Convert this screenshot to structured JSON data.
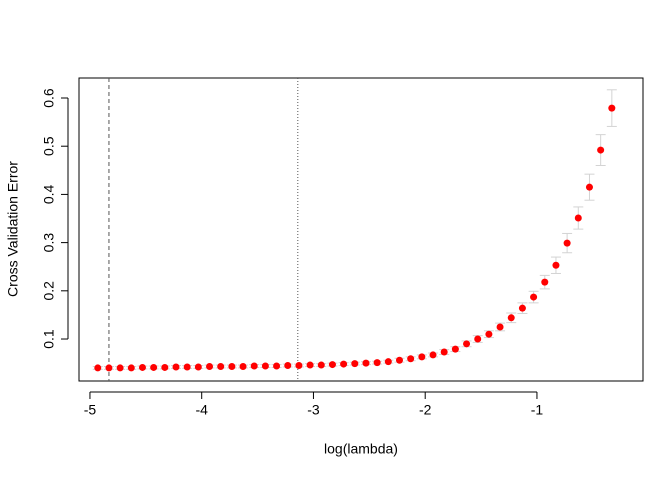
{
  "chart_data": {
    "type": "scatter",
    "xlabel": "log(lambda)",
    "ylabel": "Cross Validation Error",
    "xlim": [
      -5.098,
      -0.051
    ],
    "ylim": [
      0.0129,
      0.6415
    ],
    "xticks": [
      -5,
      -4,
      -3,
      -2,
      -1
    ],
    "yticks": [
      0.1,
      0.2,
      0.3,
      0.4,
      0.5,
      0.6
    ],
    "grid": false,
    "vlines": [
      {
        "value": -4.83,
        "style": "dashed"
      },
      {
        "value": -3.14,
        "style": "dotted"
      }
    ],
    "series": [
      {
        "color": "#ff0000",
        "error_color": "#d3d3d3",
        "x": [
          -4.93,
          -4.83,
          -4.73,
          -4.63,
          -4.53,
          -4.43,
          -4.33,
          -4.23,
          -4.13,
          -4.03,
          -3.93,
          -3.83,
          -3.73,
          -3.63,
          -3.53,
          -3.43,
          -3.33,
          -3.23,
          -3.13,
          -3.03,
          -2.93,
          -2.83,
          -2.73,
          -2.63,
          -2.53,
          -2.43,
          -2.33,
          -2.23,
          -2.13,
          -2.03,
          -1.93,
          -1.83,
          -1.73,
          -1.63,
          -1.53,
          -1.43,
          -1.33,
          -1.23,
          -1.13,
          -1.03,
          -0.93,
          -0.83,
          -0.73,
          -0.63,
          -0.53,
          -0.43,
          -0.33
        ],
        "values": [
          0.04,
          0.04,
          0.04,
          0.04,
          0.041,
          0.041,
          0.041,
          0.042,
          0.042,
          0.042,
          0.043,
          0.043,
          0.043,
          0.043,
          0.044,
          0.044,
          0.044,
          0.045,
          0.045,
          0.046,
          0.046,
          0.047,
          0.048,
          0.049,
          0.05,
          0.051,
          0.053,
          0.056,
          0.059,
          0.063,
          0.067,
          0.073,
          0.079,
          0.09,
          0.1,
          0.11,
          0.125,
          0.144,
          0.164,
          0.187,
          0.218,
          0.253,
          0.299,
          0.351,
          0.415,
          0.492,
          0.579
        ],
        "errors": [
          0.003,
          0.003,
          0.003,
          0.003,
          0.003,
          0.003,
          0.003,
          0.003,
          0.003,
          0.003,
          0.003,
          0.003,
          0.003,
          0.003,
          0.003,
          0.003,
          0.003,
          0.003,
          0.003,
          0.003,
          0.003,
          0.003,
          0.003,
          0.003,
          0.003,
          0.003,
          0.003,
          0.004,
          0.004,
          0.004,
          0.004,
          0.005,
          0.005,
          0.006,
          0.007,
          0.007,
          0.008,
          0.01,
          0.011,
          0.012,
          0.014,
          0.017,
          0.02,
          0.023,
          0.027,
          0.032,
          0.038
        ]
      }
    ]
  }
}
